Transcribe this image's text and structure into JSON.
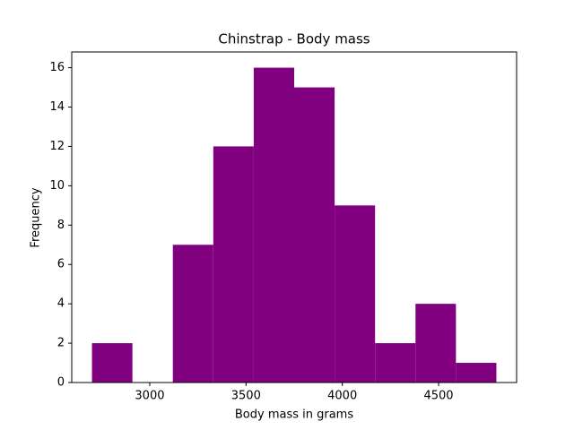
{
  "chart_data": {
    "type": "histogram",
    "title": "Chinstrap - Body mass",
    "x_label": "Body mass in grams",
    "y_label": "Frequency",
    "bins": [
      2700,
      2910,
      3120,
      3330,
      3540,
      3750,
      3960,
      4170,
      4380,
      4590,
      4800
    ],
    "values": [
      2,
      0,
      7,
      12,
      16,
      15,
      9,
      2,
      4,
      1
    ],
    "color": "#800080",
    "xlim": [
      2595,
      4905
    ],
    "xticks": [
      3000,
      3500,
      4000,
      4500
    ],
    "ylim": [
      0,
      16.8
    ],
    "yticks": [
      0,
      2,
      4,
      6,
      8,
      10,
      12,
      14,
      16
    ]
  }
}
